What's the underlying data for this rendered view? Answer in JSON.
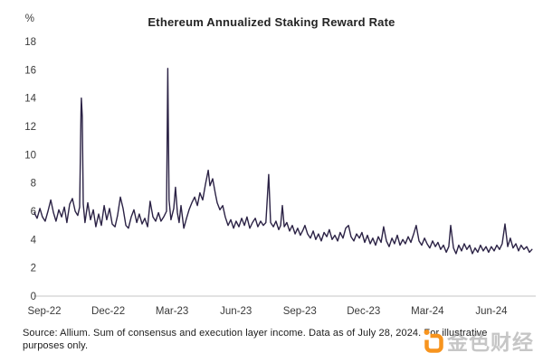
{
  "header": {
    "title": "Ethereum Annualized Staking Reward Rate"
  },
  "footer": {
    "source_text": "Source: Allium. Sum of consensus and execution layer income. Data as of July 28, 2024. For illustrative purposes only."
  },
  "watermark": {
    "name": "jinse-finance-watermark",
    "text": "金色财经",
    "logo_color": "#f7941e",
    "text_color": "rgba(146,146,146,0.52)"
  },
  "chart_data": {
    "type": "line",
    "title": "Ethereum Annualized Staking Reward Rate",
    "unit_label": "%",
    "xlabel": "",
    "ylabel": "%",
    "ylim": [
      0,
      18
    ],
    "yticks": [
      0,
      2,
      4,
      6,
      8,
      10,
      12,
      14,
      16,
      18
    ],
    "grid": false,
    "legend": false,
    "line_color": "#2b2245",
    "axis_line_color": "#d8d8d8",
    "tick_label_color": "#3a3a3a",
    "x_axis": {
      "unit": "months since Sep-2022",
      "xlim": [
        -0.6,
        23.05
      ],
      "tick_positions": [
        0,
        3,
        6,
        9,
        12,
        15,
        18,
        21
      ],
      "tick_labels": [
        "Sep-22",
        "Dec-22",
        "Mar-23",
        "Jun-23",
        "Sep-23",
        "Dec-23",
        "Mar-24",
        "Jun-24"
      ]
    },
    "series": [
      {
        "name": "Annualized staking reward rate (%)",
        "color": "#2b2245",
        "points": [
          [
            -0.47,
            5.9
          ],
          [
            -0.34,
            5.5
          ],
          [
            -0.21,
            6.2
          ],
          [
            -0.09,
            5.6
          ],
          [
            0.04,
            5.3
          ],
          [
            0.17,
            6.0
          ],
          [
            0.3,
            6.8
          ],
          [
            0.43,
            5.9
          ],
          [
            0.55,
            5.3
          ],
          [
            0.68,
            6.1
          ],
          [
            0.81,
            5.6
          ],
          [
            0.94,
            6.3
          ],
          [
            1.06,
            5.2
          ],
          [
            1.19,
            6.5
          ],
          [
            1.32,
            6.9
          ],
          [
            1.45,
            6.0
          ],
          [
            1.57,
            5.7
          ],
          [
            1.66,
            6.3
          ],
          [
            1.72,
            13.0
          ],
          [
            1.74,
            14.0
          ],
          [
            1.78,
            12.7
          ],
          [
            1.83,
            6.5
          ],
          [
            1.91,
            5.2
          ],
          [
            2.04,
            6.6
          ],
          [
            2.17,
            5.4
          ],
          [
            2.3,
            6.1
          ],
          [
            2.42,
            4.9
          ],
          [
            2.55,
            5.8
          ],
          [
            2.68,
            5.0
          ],
          [
            2.81,
            6.4
          ],
          [
            2.93,
            5.4
          ],
          [
            3.06,
            6.2
          ],
          [
            3.19,
            5.1
          ],
          [
            3.32,
            4.9
          ],
          [
            3.44,
            5.7
          ],
          [
            3.57,
            7.0
          ],
          [
            3.7,
            6.2
          ],
          [
            3.83,
            5.0
          ],
          [
            3.95,
            4.8
          ],
          [
            4.08,
            5.6
          ],
          [
            4.21,
            6.1
          ],
          [
            4.34,
            5.2
          ],
          [
            4.46,
            5.8
          ],
          [
            4.59,
            5.1
          ],
          [
            4.72,
            5.5
          ],
          [
            4.85,
            4.9
          ],
          [
            4.97,
            6.7
          ],
          [
            5.1,
            5.6
          ],
          [
            5.23,
            5.3
          ],
          [
            5.36,
            5.9
          ],
          [
            5.48,
            5.3
          ],
          [
            5.61,
            5.6
          ],
          [
            5.74,
            6.0
          ],
          [
            5.8,
            16.1
          ],
          [
            5.86,
            6.8
          ],
          [
            5.95,
            5.4
          ],
          [
            6.08,
            6.2
          ],
          [
            6.16,
            7.7
          ],
          [
            6.25,
            5.9
          ],
          [
            6.33,
            5.2
          ],
          [
            6.42,
            6.4
          ],
          [
            6.55,
            4.8
          ],
          [
            6.68,
            5.5
          ],
          [
            6.8,
            6.1
          ],
          [
            6.93,
            6.6
          ],
          [
            7.06,
            7.0
          ],
          [
            7.19,
            6.4
          ],
          [
            7.31,
            7.3
          ],
          [
            7.44,
            6.8
          ],
          [
            7.57,
            7.9
          ],
          [
            7.7,
            8.9
          ],
          [
            7.78,
            7.8
          ],
          [
            7.91,
            8.3
          ],
          [
            8.04,
            7.2
          ],
          [
            8.12,
            6.6
          ],
          [
            8.25,
            6.1
          ],
          [
            8.38,
            6.4
          ],
          [
            8.5,
            5.6
          ],
          [
            8.63,
            5.0
          ],
          [
            8.76,
            5.4
          ],
          [
            8.89,
            4.8
          ],
          [
            9.01,
            5.3
          ],
          [
            9.14,
            4.9
          ],
          [
            9.27,
            5.5
          ],
          [
            9.4,
            5.0
          ],
          [
            9.52,
            5.6
          ],
          [
            9.65,
            4.8
          ],
          [
            9.78,
            5.2
          ],
          [
            9.91,
            5.5
          ],
          [
            10.03,
            4.9
          ],
          [
            10.16,
            5.3
          ],
          [
            10.29,
            5.0
          ],
          [
            10.41,
            5.2
          ],
          [
            10.54,
            8.6
          ],
          [
            10.63,
            5.2
          ],
          [
            10.76,
            4.9
          ],
          [
            10.88,
            5.3
          ],
          [
            11.01,
            4.7
          ],
          [
            11.1,
            5.0
          ],
          [
            11.18,
            6.4
          ],
          [
            11.27,
            4.9
          ],
          [
            11.39,
            5.2
          ],
          [
            11.52,
            4.6
          ],
          [
            11.65,
            5.0
          ],
          [
            11.78,
            4.4
          ],
          [
            11.9,
            4.8
          ],
          [
            12.03,
            4.3
          ],
          [
            12.16,
            4.7
          ],
          [
            12.24,
            5.0
          ],
          [
            12.37,
            4.4
          ],
          [
            12.5,
            4.1
          ],
          [
            12.63,
            4.6
          ],
          [
            12.75,
            4.0
          ],
          [
            12.88,
            4.4
          ],
          [
            13.01,
            3.9
          ],
          [
            13.14,
            4.5
          ],
          [
            13.27,
            4.2
          ],
          [
            13.39,
            4.7
          ],
          [
            13.52,
            4.0
          ],
          [
            13.65,
            4.3
          ],
          [
            13.78,
            3.9
          ],
          [
            13.9,
            4.5
          ],
          [
            14.03,
            4.1
          ],
          [
            14.16,
            4.8
          ],
          [
            14.29,
            5.0
          ],
          [
            14.41,
            4.2
          ],
          [
            14.54,
            3.9
          ],
          [
            14.67,
            4.4
          ],
          [
            14.8,
            4.1
          ],
          [
            14.92,
            4.5
          ],
          [
            15.05,
            3.8
          ],
          [
            15.18,
            4.3
          ],
          [
            15.31,
            3.7
          ],
          [
            15.43,
            4.1
          ],
          [
            15.56,
            3.6
          ],
          [
            15.69,
            4.2
          ],
          [
            15.82,
            3.8
          ],
          [
            15.94,
            4.9
          ],
          [
            16.07,
            3.9
          ],
          [
            16.2,
            3.5
          ],
          [
            16.33,
            4.1
          ],
          [
            16.45,
            3.7
          ],
          [
            16.58,
            4.3
          ],
          [
            16.71,
            3.6
          ],
          [
            16.84,
            4.0
          ],
          [
            16.96,
            3.7
          ],
          [
            17.09,
            4.2
          ],
          [
            17.22,
            3.8
          ],
          [
            17.35,
            4.4
          ],
          [
            17.47,
            5.0
          ],
          [
            17.6,
            3.9
          ],
          [
            17.73,
            3.6
          ],
          [
            17.86,
            4.1
          ],
          [
            17.98,
            3.7
          ],
          [
            18.11,
            3.4
          ],
          [
            18.24,
            3.9
          ],
          [
            18.37,
            3.5
          ],
          [
            18.49,
            3.8
          ],
          [
            18.62,
            3.3
          ],
          [
            18.75,
            3.6
          ],
          [
            18.88,
            3.1
          ],
          [
            19.0,
            3.5
          ],
          [
            19.09,
            5.0
          ],
          [
            19.22,
            3.4
          ],
          [
            19.34,
            3.0
          ],
          [
            19.47,
            3.6
          ],
          [
            19.6,
            3.2
          ],
          [
            19.73,
            3.7
          ],
          [
            19.85,
            3.3
          ],
          [
            19.98,
            3.6
          ],
          [
            20.11,
            3.0
          ],
          [
            20.24,
            3.4
          ],
          [
            20.36,
            3.1
          ],
          [
            20.49,
            3.6
          ],
          [
            20.62,
            3.2
          ],
          [
            20.75,
            3.5
          ],
          [
            20.87,
            3.1
          ],
          [
            21.0,
            3.5
          ],
          [
            21.13,
            3.2
          ],
          [
            21.26,
            3.6
          ],
          [
            21.38,
            3.3
          ],
          [
            21.51,
            3.7
          ],
          [
            21.64,
            5.1
          ],
          [
            21.77,
            3.5
          ],
          [
            21.89,
            4.1
          ],
          [
            22.02,
            3.4
          ],
          [
            22.15,
            3.7
          ],
          [
            22.28,
            3.2
          ],
          [
            22.4,
            3.6
          ],
          [
            22.53,
            3.3
          ],
          [
            22.66,
            3.5
          ],
          [
            22.79,
            3.1
          ],
          [
            22.91,
            3.3
          ]
        ]
      }
    ]
  }
}
